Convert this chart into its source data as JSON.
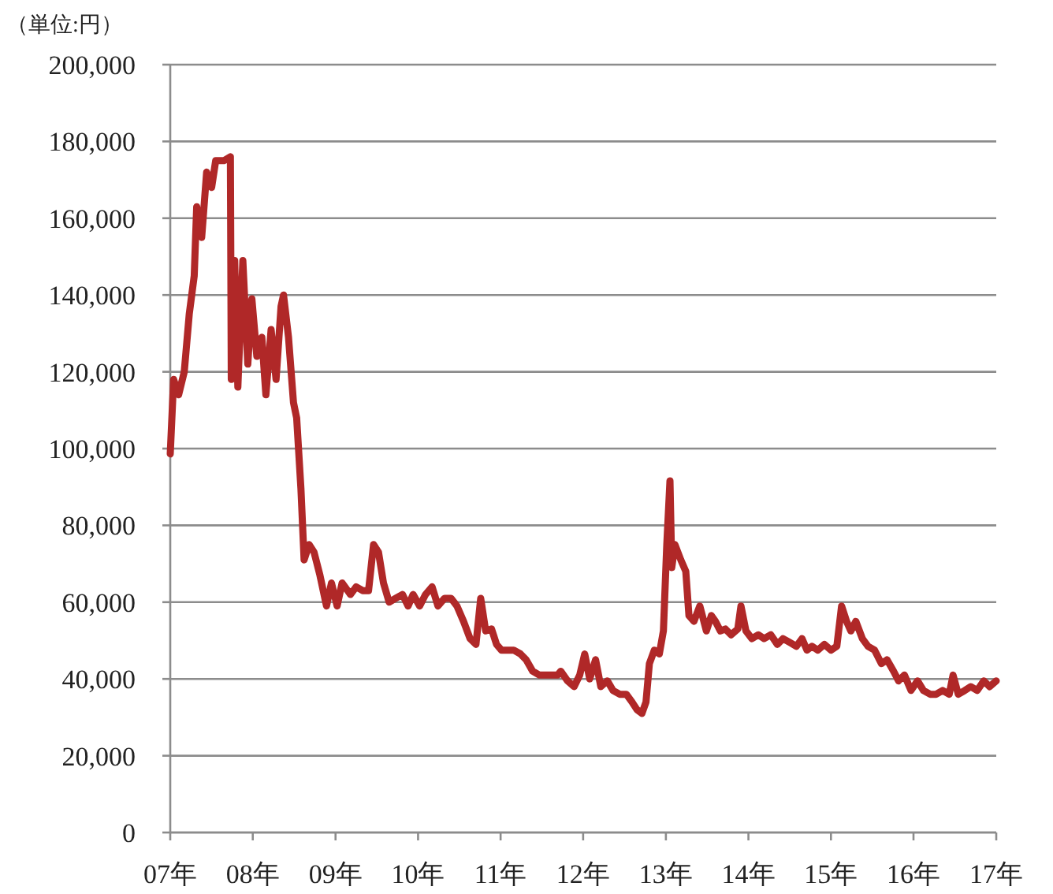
{
  "chart_data": {
    "type": "line",
    "ylabel": "（単位:円）",
    "xlim": [
      "2007-01-01",
      "2017-01-01"
    ],
    "xticks": [
      {
        "value": "2007-01-01",
        "label": "07年"
      },
      {
        "value": "2008-01-01",
        "label": "08年"
      },
      {
        "value": "2009-01-01",
        "label": "09年"
      },
      {
        "value": "2010-01-01",
        "label": "10年"
      },
      {
        "value": "2011-01-01",
        "label": "11年"
      },
      {
        "value": "2012-01-01",
        "label": "12年"
      },
      {
        "value": "2013-01-01",
        "label": "13年"
      },
      {
        "value": "2014-01-01",
        "label": "14年"
      },
      {
        "value": "2015-01-01",
        "label": "15年"
      },
      {
        "value": "2016-01-01",
        "label": "16年"
      },
      {
        "value": "2017-01-01",
        "label": "17年"
      }
    ],
    "ylim": [
      0,
      200000
    ],
    "yticks": [
      {
        "value": 0,
        "label": "0"
      },
      {
        "value": 20000,
        "label": "20,000"
      },
      {
        "value": 40000,
        "label": "40,000"
      },
      {
        "value": 60000,
        "label": "60,000"
      },
      {
        "value": 80000,
        "label": "80,000"
      },
      {
        "value": 100000,
        "label": "100,000"
      },
      {
        "value": 120000,
        "label": "120,000"
      },
      {
        "value": 140000,
        "label": "140,000"
      },
      {
        "value": 160000,
        "label": "160,000"
      },
      {
        "value": 180000,
        "label": "180,000"
      },
      {
        "value": 200000,
        "label": "200,000"
      }
    ],
    "grid": "y",
    "series": [
      {
        "color": "#b02828",
        "x": [
          "2007-01-01",
          "2007-01-16",
          "2007-02-07",
          "2007-03-04",
          "2007-03-26",
          "2007-04-17",
          "2007-04-28",
          "2007-05-20",
          "2007-06-11",
          "2007-07-03",
          "2007-07-21",
          "2007-08-26",
          "2007-09-24",
          "2007-09-28",
          "2007-10-13",
          "2007-10-27",
          "2007-11-18",
          "2007-12-10",
          "2007-12-28",
          "2008-01-19",
          "2008-02-10",
          "2008-02-28",
          "2008-03-22",
          "2008-04-13",
          "2008-05-05",
          "2008-05-16",
          "2008-06-07",
          "2008-06-29",
          "2008-07-13",
          "2008-08-01",
          "2008-08-15",
          "2008-09-06",
          "2008-09-28",
          "2008-10-24",
          "2008-11-22",
          "2008-12-14",
          "2009-01-08",
          "2009-01-30",
          "2009-03-08",
          "2009-04-02",
          "2009-05-01",
          "2009-05-27",
          "2009-06-18",
          "2009-07-10",
          "2009-08-01",
          "2009-08-26",
          "2009-09-24",
          "2009-10-24",
          "2009-11-18",
          "2009-12-10",
          "2010-01-08",
          "2010-02-03",
          "2010-03-04",
          "2010-03-30",
          "2010-04-28",
          "2010-05-27",
          "2010-06-22",
          "2010-07-21",
          "2010-08-19",
          "2010-09-14",
          "2010-10-05",
          "2010-10-27",
          "2010-11-22",
          "2010-12-14",
          "2011-01-05",
          "2011-01-30",
          "2011-02-28",
          "2011-03-30",
          "2011-04-24",
          "2011-05-23",
          "2011-06-22",
          "2011-07-17",
          "2011-08-15",
          "2011-09-10",
          "2011-09-24",
          "2011-10-24",
          "2011-11-22",
          "2011-12-17",
          "2012-01-08",
          "2012-01-30",
          "2012-02-25",
          "2012-03-19",
          "2012-04-17",
          "2012-05-12",
          "2012-06-11",
          "2012-07-10",
          "2012-08-04",
          "2012-08-26",
          "2012-09-17",
          "2012-10-05",
          "2012-10-20",
          "2012-11-11",
          "2012-12-03",
          "2012-12-21",
          "2013-01-05",
          "2013-01-19",
          "2013-01-27",
          "2013-02-10",
          "2013-03-08",
          "2013-03-30",
          "2013-04-13",
          "2013-05-05",
          "2013-05-31",
          "2013-06-29",
          "2013-07-21",
          "2013-08-08",
          "2013-08-30",
          "2013-09-21",
          "2013-10-16",
          "2013-11-15",
          "2013-11-29",
          "2013-12-21",
          "2014-01-16",
          "2014-02-14",
          "2014-03-11",
          "2014-04-10",
          "2014-05-09",
          "2014-06-03",
          "2014-07-03",
          "2014-08-01",
          "2014-08-26",
          "2014-09-17",
          "2014-10-09",
          "2014-11-04",
          "2014-12-03",
          "2015-01-01",
          "2015-01-27",
          "2015-02-17",
          "2015-03-11",
          "2015-03-30",
          "2015-04-21",
          "2015-05-20",
          "2015-06-14",
          "2015-07-13",
          "2015-08-12",
          "2015-09-06",
          "2015-10-05",
          "2015-10-27",
          "2015-11-22",
          "2015-12-21",
          "2016-01-19",
          "2016-02-14",
          "2016-03-15",
          "2016-04-10",
          "2016-05-09",
          "2016-06-07",
          "2016-06-24",
          "2016-07-17",
          "2016-08-15",
          "2016-09-10",
          "2016-10-09",
          "2016-11-07",
          "2016-12-03",
          "2017-01-01"
        ],
        "values": [
          98600,
          118000,
          114000,
          120000,
          135000,
          145000,
          163000,
          155000,
          172000,
          168000,
          175000,
          175000,
          176000,
          118000,
          149000,
          116000,
          149000,
          122000,
          139000,
          124000,
          129000,
          114000,
          131000,
          118000,
          137000,
          140000,
          129000,
          112000,
          108000,
          89500,
          71000,
          75000,
          73000,
          67000,
          59000,
          65000,
          59000,
          65000,
          62000,
          64000,
          63000,
          63000,
          75000,
          73000,
          65000,
          60000,
          61000,
          62000,
          59000,
          62000,
          59000,
          62000,
          64000,
          59000,
          61000,
          61000,
          59000,
          55000,
          50500,
          49000,
          61000,
          52500,
          53000,
          49000,
          47500,
          47500,
          47500,
          46500,
          45000,
          42000,
          41000,
          41000,
          41000,
          41000,
          42000,
          39500,
          38000,
          41000,
          46500,
          40000,
          45000,
          38000,
          39500,
          37000,
          36000,
          36000,
          34000,
          32000,
          31000,
          34000,
          44000,
          47500,
          46500,
          52500,
          75000,
          91600,
          69000,
          75000,
          71000,
          68000,
          56500,
          55000,
          59000,
          52500,
          56500,
          55000,
          52500,
          53000,
          51500,
          53000,
          59000,
          52500,
          50500,
          51500,
          50500,
          51500,
          49000,
          50500,
          49500,
          48500,
          50500,
          47500,
          48500,
          47500,
          49000,
          47500,
          48500,
          59000,
          55000,
          52500,
          55000,
          50500,
          48500,
          47500,
          44000,
          45000,
          42000,
          39500,
          41000,
          37000,
          39500,
          37000,
          36000,
          36000,
          37000,
          36000,
          41000,
          36000,
          37000,
          38000,
          37000,
          39500,
          38000,
          39500
        ]
      }
    ]
  }
}
